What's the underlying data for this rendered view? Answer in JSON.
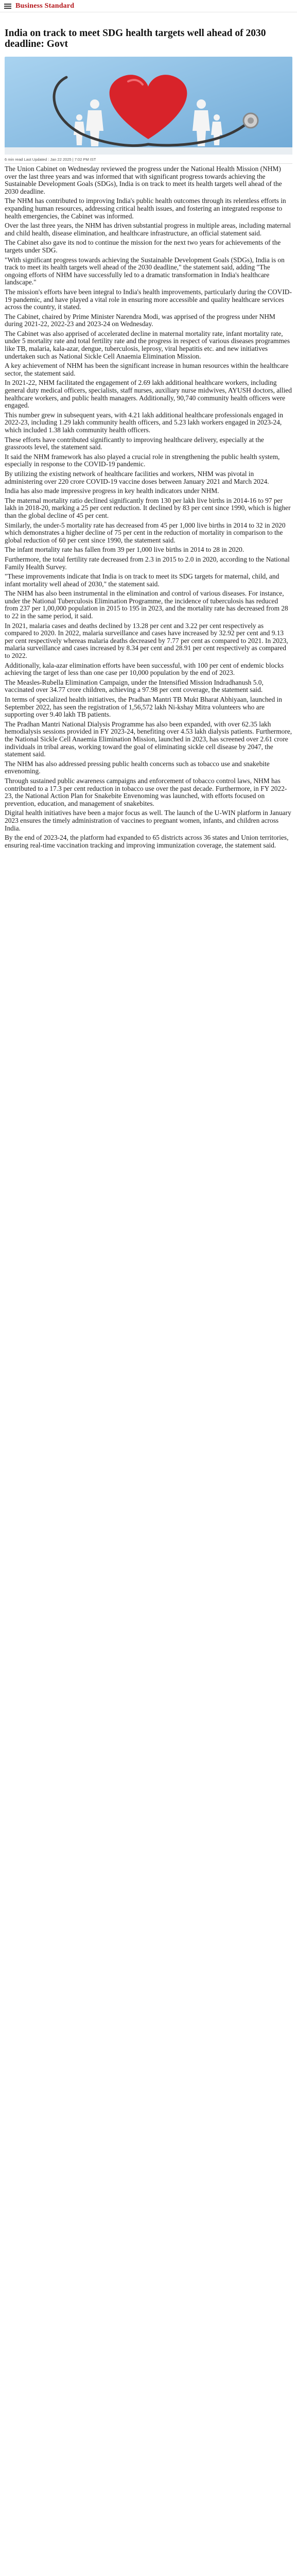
{
  "header": {
    "brand": "Business Standard"
  },
  "article": {
    "title": "India on track to meet SDG health targets well ahead of 2030 deadline: Govt",
    "meta": "6 min read Last Updated : Jan 22 2025 | 7:02 PM IST",
    "paragraphs": [
      "The Union Cabinet on Wednesday reviewed the progress under the National Health Mission (NHM) over the last three years and was informed that with significant progress towards achieving the Sustainable Development Goals (SDGs), India is on track to meet its health targets well ahead of the 2030 deadline.",
      "The NHM has contributed to improving India's public health outcomes through its relentless efforts in expanding human resources, addressing critical health issues, and fostering an integrated response to health emergencies, the Cabinet was informed.",
      "Over the last three years, the NHM has driven substantial progress in multiple areas, including maternal and child health, disease elimination, and healthcare infrastructure, an official statement said.",
      "The Cabinet also gave its nod to continue the mission for the next two years for achievements of the targets under SDG.",
      "\"With significant progress towards achieving the Sustainable Development Goals (SDGs), India is on track to meet its health targets well ahead of the 2030 deadline,\" the statement said, adding \"The ongoing efforts of NHM have successfully led to a dramatic transformation in India's healthcare landscape.\"",
      "The mission's efforts have been integral to India's health improvements, particularly during the COVID-19 pandemic, and have played a vital role in ensuring more accessible and quality healthcare services across the country, it stated.",
      "The Cabinet, chaired by Prime Minister Narendra Modi, was apprised of the progress under NHM during 2021-22, 2022-23 and 2023-24 on Wednesday.",
      "The Cabinet was also apprised of accelerated decline in maternal mortality rate, infant mortality rate, under 5 mortality rate and total fertility rate and the progress in respect of various diseases programmes like TB, malaria, kala-azar, dengue, tuberculosis, leprosy, viral hepatitis etc. and new initiatives undertaken such as National Sickle Cell Anaemia Elimination Mission.",
      "A key achievement of NHM has been the significant increase in human resources within the healthcare sector, the statement said.",
      "In 2021-22, NHM facilitated the engagement of 2.69 lakh additional healthcare workers, including general duty medical officers, specialists, staff nurses, auxiliary nurse midwives, AYUSH doctors, allied healthcare workers, and public health managers. Additionally, 90,740 community health officers were engaged.",
      "This number grew in subsequent years, with 4.21 lakh additional healthcare professionals engaged in 2022-23, including 1.29 lakh community health officers, and 5.23 lakh workers engaged in 2023-24, which included 1.38 lakh community health officers.",
      "These efforts have contributed significantly to improving healthcare delivery, especially at the grassroots level, the statement said.",
      "It said the NHM framework has also played a crucial role in strengthening the public health system, especially in response to the COVID-19 pandemic.",
      "By utilizing the existing network of healthcare facilities and workers, NHM was pivotal in administering over 220 crore COVID-19 vaccine doses between January 2021 and March 2024.",
      "India has also made impressive progress in key health indicators under NHM.",
      "The maternal mortality ratio declined significantly from 130 per lakh live births in 2014-16 to 97 per lakh in 2018-20, marking a 25 per cent reduction. It declined by 83 per cent since 1990, which is higher than the global decline of 45 per cent.",
      "Similarly, the under-5 mortality rate has decreased from 45 per 1,000 live births in 2014 to 32 in 2020 which demonstrates a higher decline of 75 per cent in the reduction of mortality in comparison to the global reduction of 60 per cent since 1990, the statement said.",
      "The infant mortality rate has fallen from 39 per 1,000 live births in 2014 to 28 in 2020.",
      "Furthermore, the total fertility rate decreased from 2.3 in 2015 to 2.0 in 2020, according to the National Family Health Survey.",
      "\"These improvements indicate that India is on track to meet its SDG targets for maternal, child, and infant mortality well ahead of 2030,\" the statement said.",
      "The NHM has also been instrumental in the elimination and control of various diseases. For instance, under the National Tuberculosis Elimination Programme, the incidence of tuberculosis has reduced from 237 per 1,00,000 population in 2015 to 195 in 2023, and the mortality rate has decreased from 28 to 22 in the same period, it said.",
      "In 2021, malaria cases and deaths declined by 13.28 per cent and 3.22 per cent respectively as compared to 2020. In 2022, malaria surveillance and cases have increased by 32.92 per cent and 9.13 per cent respectively whereas malaria deaths decreased by 7.77 per cent as compared to 2021. In 2023, malaria surveillance and cases increased by 8.34 per cent and 28.91 per cent respectively as compared to 2022.",
      "Additionally, kala-azar elimination efforts have been successful, with 100 per cent of endemic blocks achieving the target of less than one case per 10,000 population by the end of 2023.",
      "The Measles-Rubella Elimination Campaign, under the Intensified Mission Indradhanush 5.0, vaccinated over 34.77 crore children, achieving a 97.98 per cent coverage, the statement said.",
      "In terms of specialized health initiatives, the Pradhan Mantri TB Mukt Bharat Abhiyaan, launched in September 2022, has seen the registration of 1,56,572 lakh Ni-kshay Mitra volunteers who are supporting over 9.40 lakh TB patients.",
      "The Pradhan Mantri National Dialysis Programme has also been expanded, with over 62.35 lakh hemodialysis sessions provided in FY 2023-24, benefiting over 4.53 lakh dialysis patients. Furthermore, the National Sickle Cell Anaemia Elimination Mission, launched in 2023, has screened over 2.61 crore individuals in tribal areas, working toward the goal of eliminating sickle cell disease by 2047, the statement said.",
      "The NHM has also addressed pressing public health concerns such as tobacco use and snakebite envenoming.",
      "Through sustained public awareness campaigns and enforcement of tobacco control laws, NHM has contributed to a 17.3 per cent reduction in tobacco use over the past decade. Furthermore, in FY 2022-23, the National Action Plan for Snakebite Envenoming was launched, with efforts focused on prevention, education, and management of snakebites.",
      "Digital health initiatives have been a major focus as well. The launch of the U-WIN platform in January 2023 ensures the timely administration of vaccines to pregnant women, infants, and children across India.",
      "By the end of 2023-24, the platform had expanded to 65 districts across 36 states and Union territories, ensuring real-time vaccination tracking and improving immunization coverage, the statement said."
    ]
  },
  "image": {
    "icon": "heart-family-stethoscope-illustration",
    "colors": {
      "background": "#8fc3e8",
      "heart": "#d8232a",
      "paper": "#f4f4f4"
    }
  }
}
